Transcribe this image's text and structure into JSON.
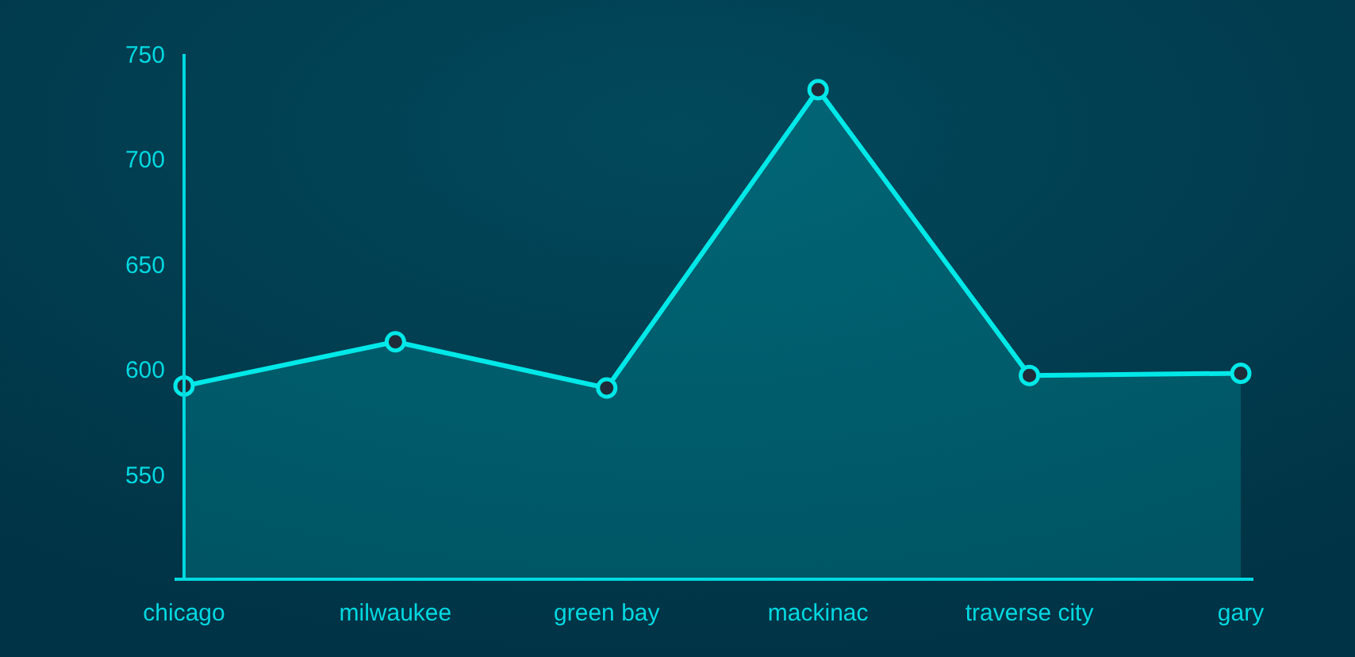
{
  "chart_data": {
    "type": "area",
    "categories": [
      "chicago",
      "milwaukee",
      "green bay",
      "mackinac",
      "traverse city",
      "gary"
    ],
    "series": [
      {
        "color": "#00e8e8",
        "values": [
          592,
          613,
          591,
          733,
          597,
          598
        ]
      }
    ],
    "ylim": [
      500,
      750
    ],
    "yticks": [
      550,
      600,
      650,
      700,
      750
    ],
    "grid": false,
    "marker": "circle",
    "line_style": "solid"
  }
}
